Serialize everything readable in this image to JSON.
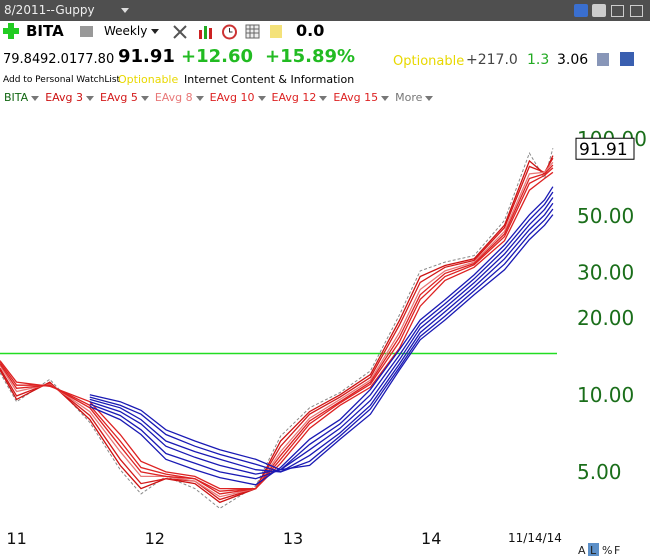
{
  "toolbar": {
    "layout_name": "8/2011--Guppy",
    "symbol": "BITA",
    "period": "Weekly",
    "value": "0.0"
  },
  "quote": {
    "open": "79.84",
    "high": "92.01",
    "low": "77.80",
    "last": "91.91",
    "change": "+12.60",
    "change_pct": "+15.89%",
    "optionable": "Optionable",
    "stat1": "+217.0",
    "stat2": "1.3",
    "stat3": "3.06"
  },
  "info": {
    "watchlist": "Add to Personal WatchList",
    "optionable": "Optionable",
    "industry": "Internet Content & Information"
  },
  "legend_more": "More",
  "chart_data": {
    "type": "line",
    "yscale": "log",
    "x": [
      10.88,
      11.0,
      11.24,
      11.53,
      11.75,
      11.9,
      12.08,
      12.29,
      12.47,
      12.73,
      12.91,
      13.12,
      13.34,
      13.56,
      13.77,
      13.92,
      14.1,
      14.31,
      14.53,
      14.71,
      14.82,
      14.88
    ],
    "xlim": [
      10.88,
      14.91
    ],
    "xticks": [
      11,
      12,
      13,
      14
    ],
    "ylim": [
      3.1,
      132
    ],
    "yticks": [
      {
        "value": 5,
        "label": "5.00"
      },
      {
        "value": 10,
        "label": "10.00"
      },
      {
        "value": 20,
        "label": "20.00"
      },
      {
        "value": 30,
        "label": "30.00"
      },
      {
        "value": 50,
        "label": "50.00"
      },
      {
        "value": 100,
        "label": "100.00"
      }
    ],
    "hline": {
      "value": 14.5,
      "color": "#22dd22"
    },
    "series": [
      {
        "name": "BITA",
        "color": "#888888",
        "dashed": true,
        "values": [
          12.2,
          9.4,
          11.5,
          7.8,
          5.1,
          4.1,
          4.8,
          4.3,
          3.6,
          4.4,
          6.9,
          8.9,
          10.2,
          12.4,
          20.5,
          30.5,
          33.0,
          35.0,
          48.0,
          88.0,
          70.0,
          91.91
        ]
      },
      {
        "name": "EAvg 3",
        "color": "#cc1111",
        "values": [
          12.5,
          9.6,
          11.2,
          8.0,
          5.3,
          4.3,
          4.7,
          4.5,
          3.8,
          4.3,
          6.6,
          8.6,
          10.0,
          12.0,
          19.5,
          29.0,
          32.0,
          34.0,
          46.0,
          82.0,
          73.0,
          86.0
        ]
      },
      {
        "name": "EAvg 5",
        "color": "#d41a1a",
        "values": [
          12.7,
          9.9,
          11.1,
          8.3,
          5.6,
          4.5,
          4.7,
          4.6,
          3.9,
          4.3,
          6.3,
          8.4,
          9.8,
          11.7,
          18.7,
          27.5,
          31.5,
          33.5,
          45.0,
          78.0,
          74.0,
          84.0
        ]
      },
      {
        "name": "EAvg 8",
        "color": "#e87878",
        "values": [
          13.0,
          10.3,
          11.0,
          8.6,
          6.0,
          4.8,
          4.8,
          4.6,
          4.0,
          4.3,
          6.0,
          8.1,
          9.6,
          11.4,
          17.5,
          25.8,
          30.5,
          33.0,
          43.5,
          73.0,
          74.0,
          81.0
        ]
      },
      {
        "name": "EAvg 10",
        "color": "#dd2222",
        "values": [
          13.2,
          10.6,
          10.9,
          8.9,
          6.3,
          5.0,
          4.8,
          4.7,
          4.1,
          4.3,
          5.8,
          7.9,
          9.4,
          11.2,
          16.8,
          24.6,
          29.8,
          32.6,
          42.5,
          70.0,
          73.0,
          79.0
        ]
      },
      {
        "name": "EAvg 12",
        "color": "#dd2222",
        "values": [
          13.4,
          10.9,
          10.9,
          9.1,
          6.6,
          5.2,
          4.9,
          4.7,
          4.2,
          4.3,
          5.6,
          7.7,
          9.3,
          11.0,
          16.1,
          23.6,
          29.0,
          32.2,
          41.5,
          67.0,
          72.0,
          77.0
        ]
      },
      {
        "name": "EAvg 15",
        "color": "#dd2222",
        "values": [
          13.6,
          11.2,
          10.8,
          9.4,
          7.0,
          5.5,
          5.0,
          4.8,
          4.3,
          4.3,
          5.4,
          7.4,
          9.1,
          10.7,
          15.2,
          22.2,
          28.0,
          31.5,
          40.0,
          63.0,
          70.0,
          74.0
        ]
      },
      {
        "color": "#1a1ab4",
        "values": [
          null,
          null,
          null,
          9.0,
          8.0,
          7.0,
          5.6,
          5.1,
          4.75,
          4.45,
          5.2,
          6.7,
          8.0,
          10.5,
          15.0,
          19.6,
          23.5,
          29.4,
          38.5,
          50.5,
          57.8,
          65.0
        ]
      },
      {
        "color": "#1a1ab4",
        "values": [
          null,
          null,
          null,
          9.2,
          8.3,
          7.3,
          5.9,
          5.4,
          5.0,
          4.7,
          5.1,
          6.4,
          7.7,
          10.0,
          14.3,
          18.9,
          22.7,
          28.4,
          37.0,
          48.3,
          55.5,
          62.0
        ]
      },
      {
        "color": "#1a1ab4",
        "values": [
          null,
          null,
          null,
          9.4,
          8.6,
          7.7,
          6.3,
          5.7,
          5.3,
          4.9,
          5.1,
          6.1,
          7.4,
          9.5,
          13.7,
          18.2,
          21.9,
          27.4,
          35.5,
          46.2,
          53.0,
          59.0
        ]
      },
      {
        "color": "#1a1ab4",
        "values": [
          null,
          null,
          null,
          9.6,
          8.9,
          8.0,
          6.6,
          6.0,
          5.6,
          5.1,
          5.0,
          5.8,
          7.1,
          9.1,
          13.2,
          17.5,
          21.1,
          26.4,
          34.0,
          44.2,
          50.5,
          56.0
        ]
      },
      {
        "color": "#1a1ab4",
        "values": [
          null,
          null,
          null,
          9.8,
          9.1,
          8.4,
          7.0,
          6.3,
          5.85,
          5.35,
          5.0,
          5.5,
          6.9,
          8.8,
          12.8,
          16.9,
          20.3,
          25.5,
          32.4,
          42.3,
          48.2,
          53.2
        ]
      },
      {
        "color": "#1a1ab4",
        "values": [
          null,
          null,
          null,
          10.0,
          9.4,
          8.7,
          7.3,
          6.6,
          6.1,
          5.6,
          5.1,
          5.3,
          6.7,
          8.4,
          12.5,
          16.4,
          19.6,
          24.6,
          30.8,
          40.4,
          46.0,
          50.6
        ]
      }
    ]
  },
  "footer": {
    "date": "11/14/14",
    "buttons": [
      "A",
      "L",
      "%",
      "F"
    ]
  }
}
